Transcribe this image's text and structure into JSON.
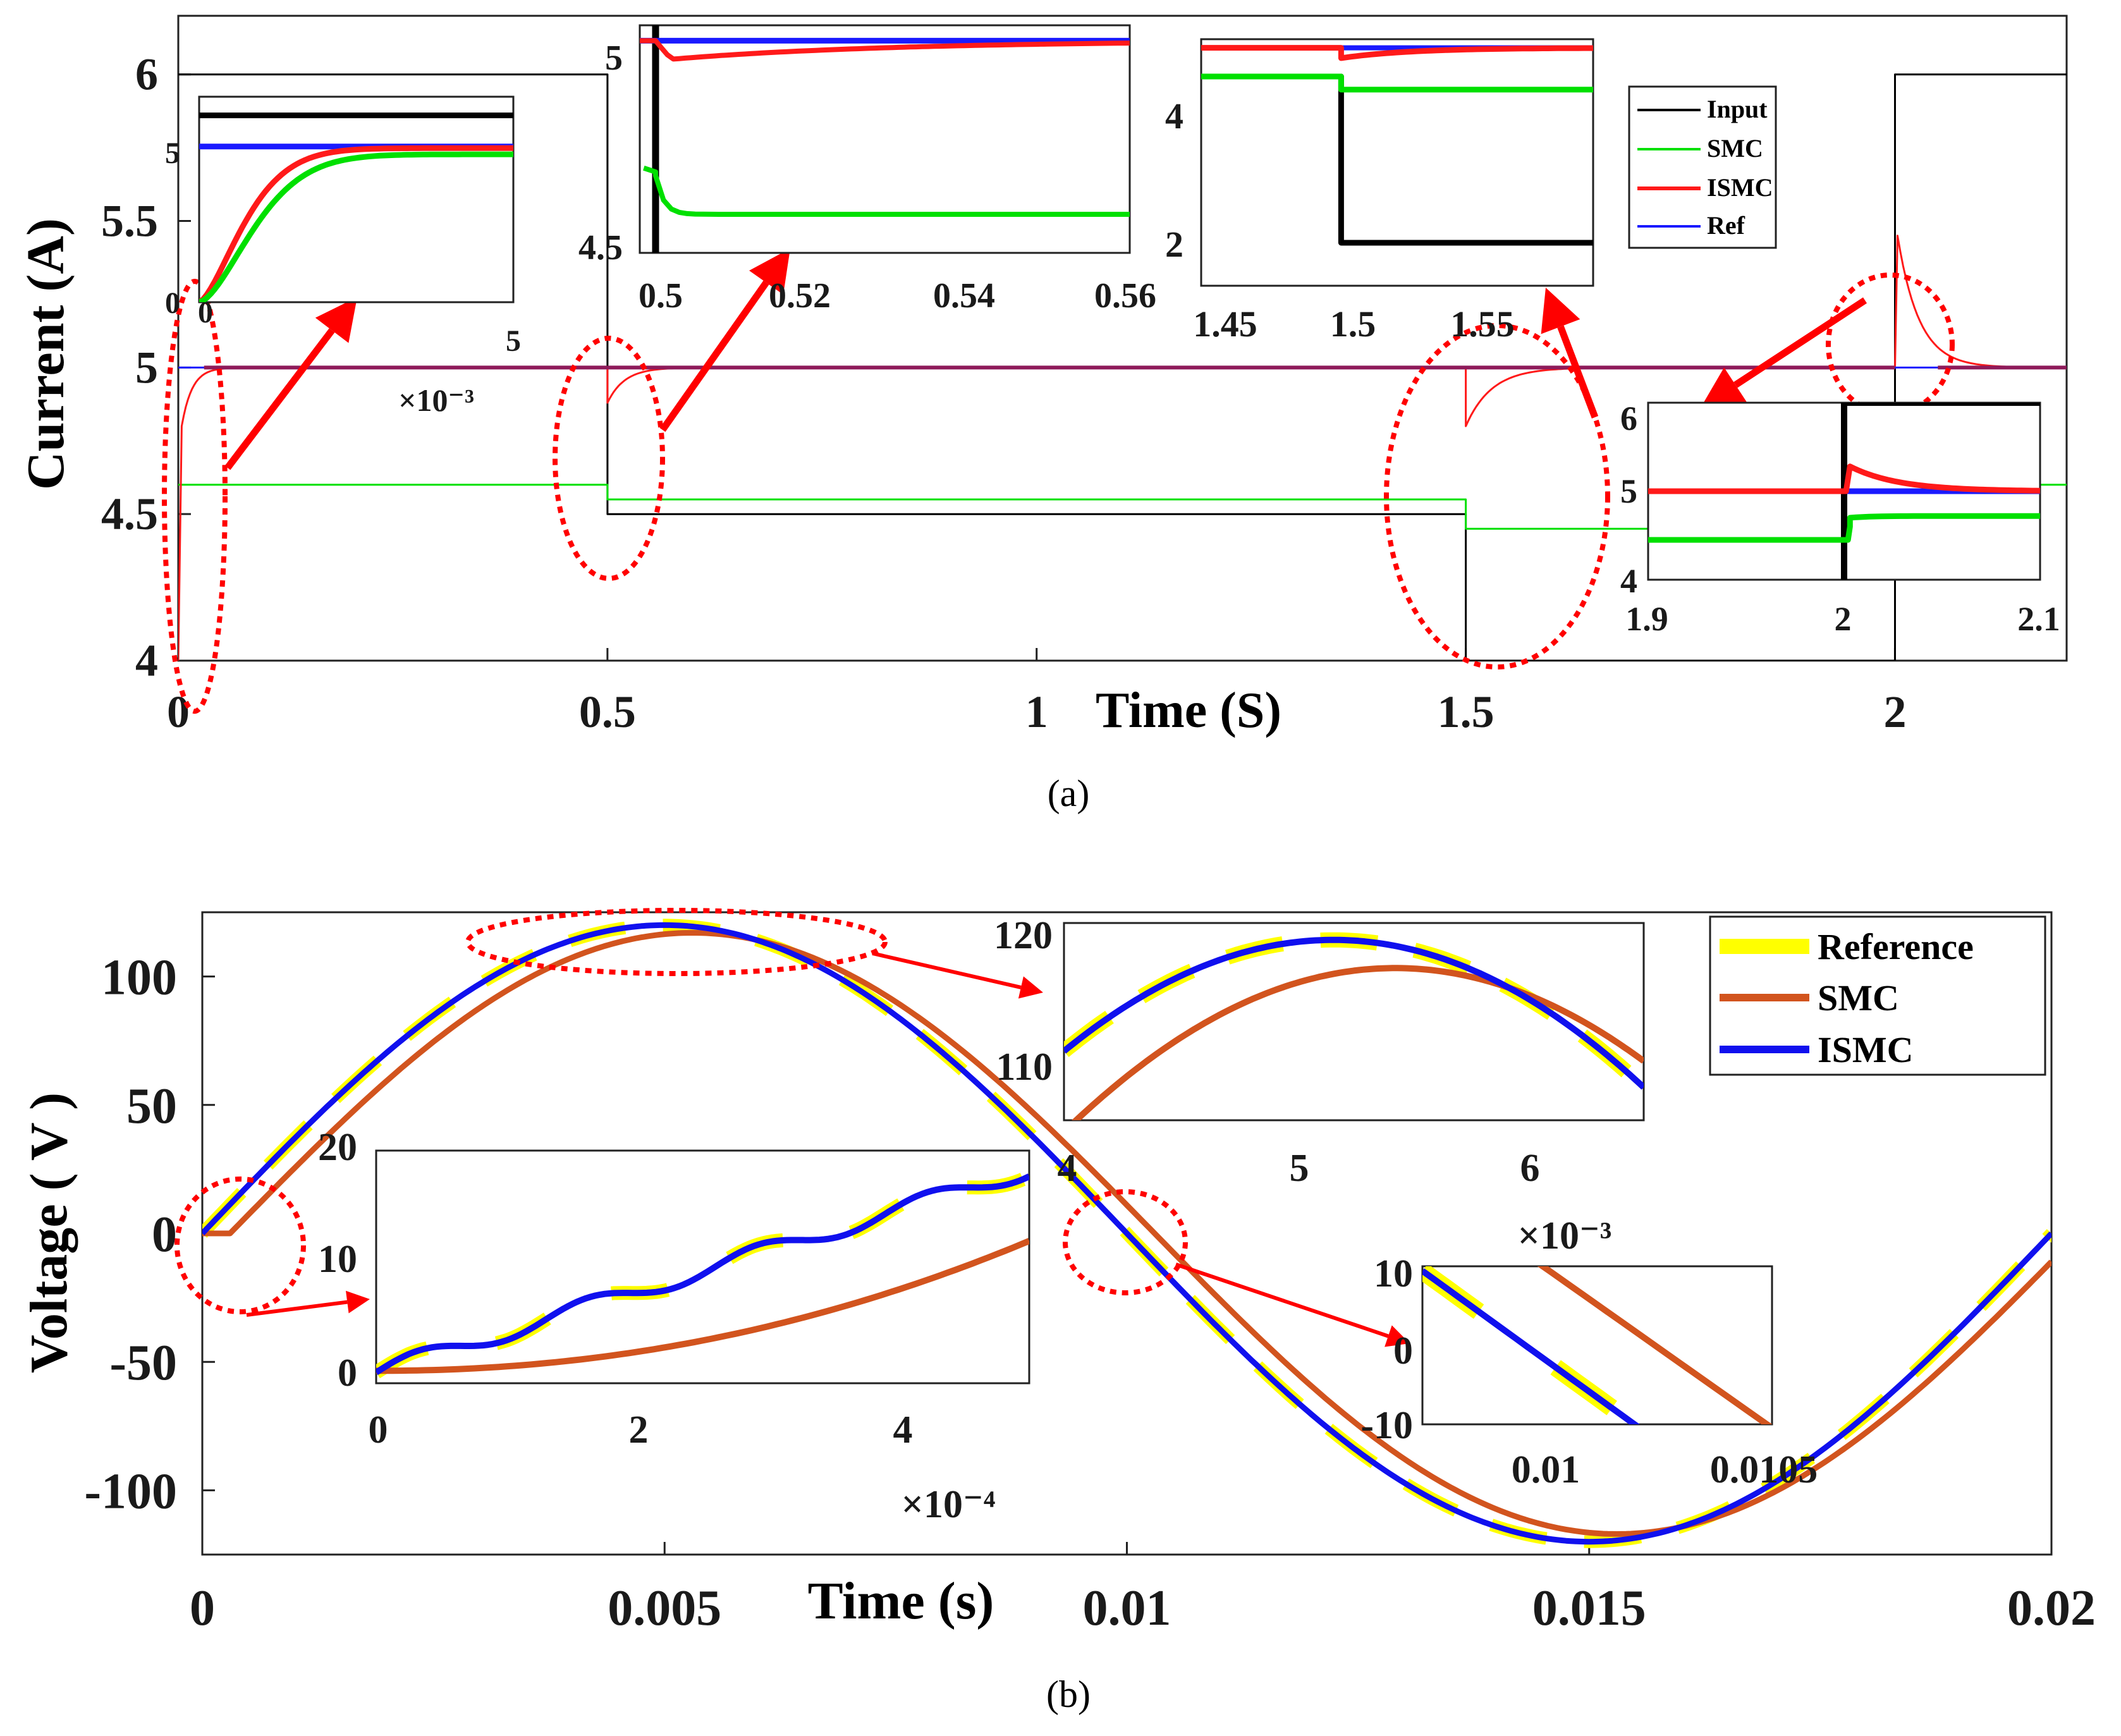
{
  "colors": {
    "input": "#000000",
    "smc_a": "#00e000",
    "ismc_a": "#ff1a1a",
    "ref_a": "#1a1aff",
    "reference_b": "#ffff00",
    "smc_b": "#d2541e",
    "ismc_b": "#1010ee",
    "marker": "#ff0000",
    "overlap_line": "#8e1a5a"
  },
  "captions": {
    "a": "(a)",
    "b": "(b)"
  },
  "chart_data": [
    {
      "id": "a",
      "type": "line",
      "title": "",
      "xlabel": "Time (S)",
      "ylabel": "Current (A)",
      "xlim": [
        0,
        2.2
      ],
      "ylim": [
        4,
        6.2
      ],
      "xticks": [
        "0",
        "0.5",
        "1",
        "1.5",
        "2"
      ],
      "yticks": [
        "4",
        "4.5",
        "5",
        "5.5",
        "6"
      ],
      "legend": {
        "position": "top-right",
        "entries": [
          "Input",
          "SMC",
          "ISMC",
          "Ref"
        ]
      },
      "series": [
        {
          "name": "Input",
          "points": [
            [
              0,
              6
            ],
            [
              0.5,
              6
            ],
            [
              0.5,
              4.5
            ],
            [
              1.5,
              4.5
            ],
            [
              1.5,
              4
            ],
            [
              2,
              4
            ],
            [
              2,
              6
            ],
            [
              2.2,
              6
            ]
          ]
        },
        {
          "name": "SMC",
          "points": [
            [
              0,
              4.6
            ],
            [
              0.5,
              4.6
            ],
            [
              0.5,
              4.55
            ],
            [
              1.5,
              4.55
            ],
            [
              1.5,
              4.45
            ],
            [
              2,
              4.45
            ],
            [
              2,
              4.6
            ],
            [
              2.2,
              4.6
            ]
          ]
        },
        {
          "name": "ISMC",
          "points": [
            [
              0,
              4
            ],
            [
              0.005,
              4.7
            ],
            [
              0.02,
              4.95
            ],
            [
              0.1,
              5
            ],
            [
              0.5,
              5
            ],
            [
              0.505,
              4.85
            ],
            [
              0.56,
              5
            ],
            [
              1.5,
              5
            ],
            [
              1.505,
              4.78
            ],
            [
              1.6,
              5
            ],
            [
              2,
              5
            ],
            [
              2.003,
              5.45
            ],
            [
              2.1,
              5
            ]
          ]
        },
        {
          "name": "Ref",
          "points": [
            [
              0,
              5
            ],
            [
              2.2,
              5
            ]
          ]
        }
      ],
      "insets": [
        {
          "xticks": [
            "0",
            "5"
          ],
          "yticks": [
            "0",
            "5"
          ],
          "xmultiplier": "×10⁻³"
        },
        {
          "xticks": [
            "0.5",
            "0.52",
            "0.54",
            "0.56"
          ],
          "yticks": [
            "4.5",
            "5"
          ]
        },
        {
          "xticks": [
            "1.45",
            "1.5",
            "1.55"
          ],
          "yticks": [
            "2",
            "4"
          ]
        },
        {
          "xticks": [
            "1.9",
            "2",
            "2.1"
          ],
          "yticks": [
            "4",
            "5",
            "6"
          ]
        }
      ]
    },
    {
      "id": "b",
      "type": "line",
      "title": "",
      "xlabel": "Time (s)",
      "ylabel": "Voltage ( V )",
      "xlim": [
        0,
        0.02
      ],
      "ylim": [
        -125,
        125
      ],
      "xticks": [
        "0",
        "0.005",
        "0.01",
        "0.015",
        "0.02"
      ],
      "yticks": [
        "-100",
        "-50",
        "0",
        "50",
        "100"
      ],
      "legend": {
        "position": "top-right",
        "entries": [
          "Reference",
          "SMC",
          "ISMC"
        ]
      },
      "series": [
        {
          "name": "Reference",
          "amplitude": 120,
          "frequency_hz": 50,
          "phase_delay_s": 0
        },
        {
          "name": "SMC",
          "amplitude": 117,
          "frequency_hz": 50,
          "phase_delay_s": 0.0003
        },
        {
          "name": "ISMC",
          "amplitude": 120,
          "frequency_hz": 50,
          "phase_delay_s": 0
        }
      ],
      "insets": [
        {
          "xticks": [
            "4",
            "5",
            "6"
          ],
          "yticks": [
            "110",
            "120"
          ],
          "xmultiplier": "×10⁻³"
        },
        {
          "xticks": [
            "0",
            "2",
            "4"
          ],
          "yticks": [
            "0",
            "10",
            "20"
          ],
          "xmultiplier": "×10⁻⁴"
        },
        {
          "xticks": [
            "0.01",
            "0.0105"
          ],
          "yticks": [
            "-10",
            "0",
            "10"
          ]
        }
      ]
    }
  ]
}
